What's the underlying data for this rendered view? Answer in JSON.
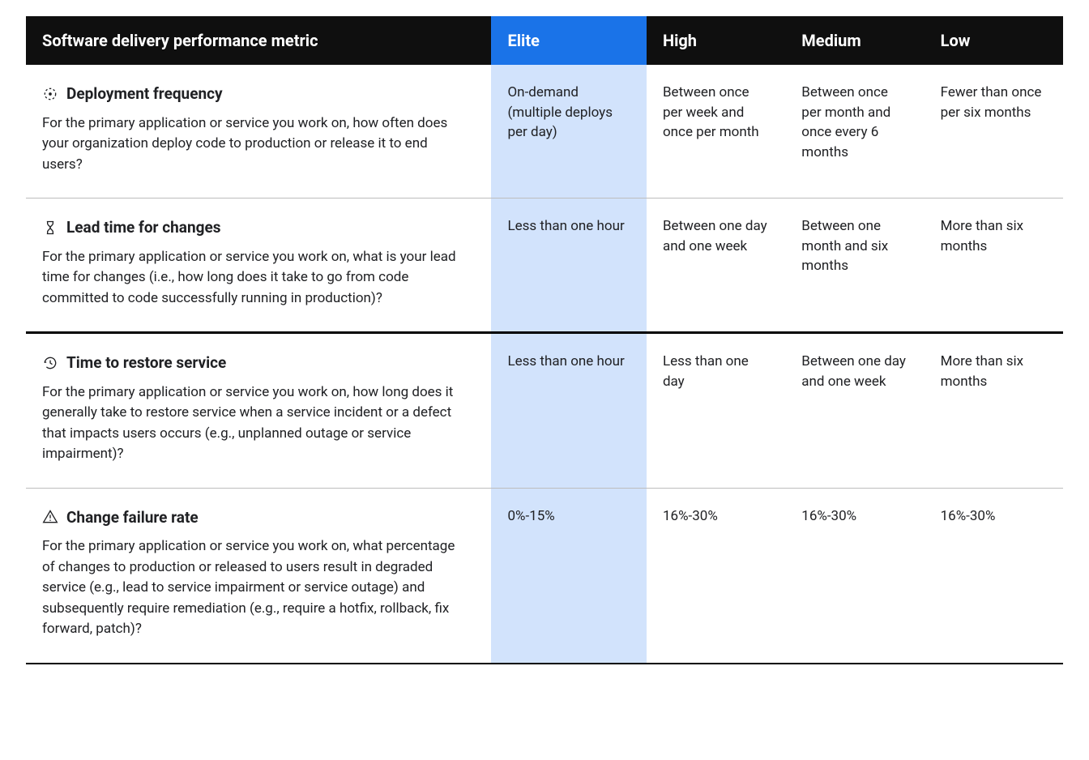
{
  "header": {
    "metric": "Software delivery performance metric",
    "elite": "Elite",
    "high": "High",
    "medium": "Medium",
    "low": "Low"
  },
  "rows": [
    {
      "icon": "deploy-cycle",
      "title": "Deployment frequency",
      "desc": "For the primary application or service you work on, how often does your organization deploy code to production or release it to end users?",
      "elite": "On-demand (multiple deploys per day)",
      "high": "Between once per week and once per month",
      "medium": "Between once per month and once every 6 months",
      "low": "Fewer than once per six months"
    },
    {
      "icon": "hourglass",
      "title": "Lead time for changes",
      "desc": "For the primary application or service you work on, what is your lead time for changes (i.e., how long does it take to go from code committed to code successfully running in production)?",
      "elite": "Less than one hour",
      "high": "Between one day and one week",
      "medium": "Between one month and six months",
      "low": "More than six months"
    },
    {
      "icon": "restore",
      "title": "Time to restore service",
      "desc": "For the primary application or service you work on, how long does it generally take to restore service when a service incident or a defect that impacts users occurs (e.g., unplanned outage or service impairment)?",
      "elite": "Less than one hour",
      "high": "Less than one day",
      "medium": "Between one day and one week",
      "low": "More than six months"
    },
    {
      "icon": "warning",
      "title": "Change failure rate",
      "desc": "For the primary application or service you work on, what percentage of changes to production or released to users result in degraded service (e.g., lead to service impairment or service outage) and subsequently require remediation (e.g., require a hotfix, rollback, fix forward, patch)?",
      "elite": "0%-15%",
      "high": "16%-30%",
      "medium": "16%-30%",
      "low": "16%-30%"
    }
  ],
  "colors": {
    "header_bg": "#0f0f0f",
    "elite_header_bg": "#1a73e8",
    "elite_col_bg": "#d2e3fc",
    "text": "#202124",
    "border": "#bdbdbd",
    "strong_border": "#000000"
  },
  "section_divider_after_row": 1
}
